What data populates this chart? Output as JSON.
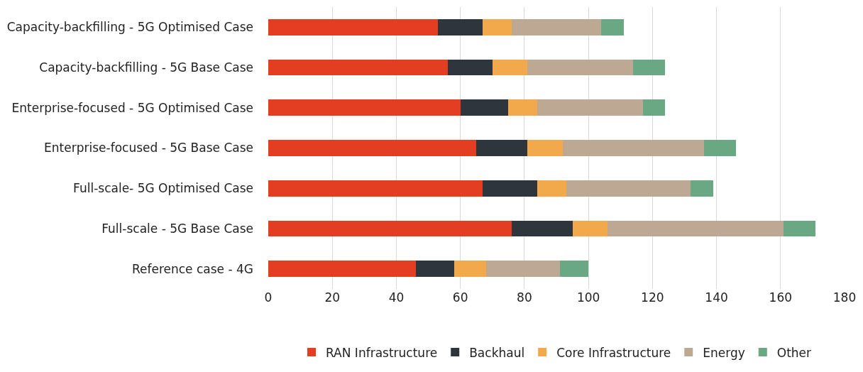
{
  "chart_data": {
    "type": "bar",
    "orientation": "horizontal",
    "stacked": true,
    "categories": [
      "Capacity-backfilling - 5G Optimised Case",
      "Capacity-backfilling - 5G Base Case",
      "Enterprise-focused - 5G Optimised Case",
      "Enterprise-focused - 5G Base Case",
      "Full-scale- 5G Optimised Case",
      "Full-scale - 5G Base Case",
      "Reference case - 4G"
    ],
    "series": [
      {
        "name": "RAN Infrastructure",
        "color": "#e33d22",
        "values": [
          53,
          56,
          60,
          65,
          67,
          76,
          46
        ]
      },
      {
        "name": "Backhaul",
        "color": "#2e353d",
        "values": [
          14,
          14,
          15,
          16,
          17,
          19,
          12
        ]
      },
      {
        "name": "Core Infrastructure",
        "color": "#f2a94b",
        "values": [
          9,
          11,
          9,
          11,
          9,
          11,
          10
        ]
      },
      {
        "name": "Energy",
        "color": "#bca893",
        "values": [
          28,
          33,
          33,
          44,
          39,
          55,
          23
        ]
      },
      {
        "name": "Other",
        "color": "#69a883",
        "values": [
          7,
          10,
          7,
          10,
          7,
          10,
          9
        ]
      }
    ],
    "xlim": [
      0,
      180
    ],
    "xticks": [
      0,
      20,
      40,
      60,
      80,
      100,
      120,
      140,
      160,
      180
    ],
    "grid": "x",
    "legend": "bottom"
  }
}
